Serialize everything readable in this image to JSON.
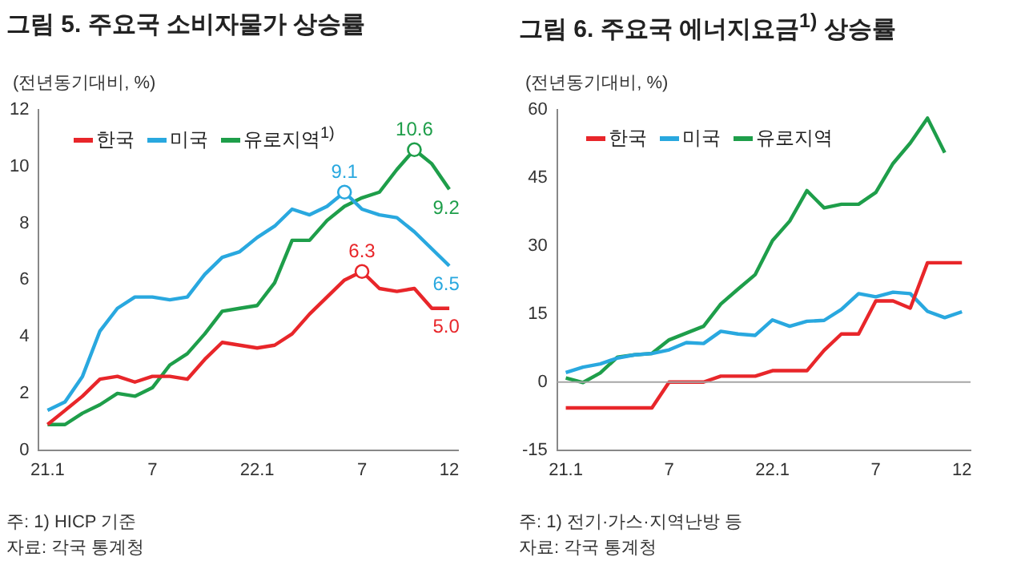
{
  "chart_data": [
    {
      "type": "line",
      "title": "그림 5. 주요국 소비자물가 상승률",
      "ylabel": "(전년동기대비, %)",
      "categories": [
        "21.1",
        null,
        null,
        null,
        null,
        null,
        "7",
        null,
        null,
        null,
        null,
        null,
        "22.1",
        null,
        null,
        null,
        null,
        null,
        "7",
        null,
        null,
        null,
        null,
        "12"
      ],
      "series": [
        {
          "name": "한국",
          "color": "#e8262a",
          "values": [
            0.9,
            1.4,
            1.9,
            2.5,
            2.6,
            2.4,
            2.6,
            2.6,
            2.5,
            3.2,
            3.8,
            3.7,
            3.6,
            3.7,
            4.1,
            4.8,
            5.4,
            6.0,
            6.3,
            5.7,
            5.6,
            5.7,
            5.0,
            5.0
          ],
          "value_labels": [
            null,
            null,
            null,
            null,
            null,
            null,
            null,
            null,
            null,
            null,
            null,
            null,
            null,
            null,
            null,
            null,
            null,
            null,
            "6.3",
            null,
            null,
            null,
            null,
            "5.0"
          ]
        },
        {
          "name": "미국",
          "color": "#29a8df",
          "values": [
            1.4,
            1.7,
            2.6,
            4.2,
            5.0,
            5.4,
            5.4,
            5.3,
            5.4,
            6.2,
            6.8,
            7.0,
            7.5,
            7.9,
            8.5,
            8.3,
            8.6,
            9.1,
            8.5,
            8.3,
            8.2,
            7.7,
            7.1,
            6.5
          ],
          "value_labels": [
            null,
            null,
            null,
            null,
            null,
            null,
            null,
            null,
            null,
            null,
            null,
            null,
            null,
            null,
            null,
            null,
            null,
            "9.1",
            null,
            null,
            null,
            null,
            null,
            "6.5"
          ]
        },
        {
          "name": "유로지역$^{1)}$",
          "color": "#1e9e4a",
          "values": [
            0.9,
            0.9,
            1.3,
            1.6,
            2.0,
            1.9,
            2.2,
            3.0,
            3.4,
            4.1,
            4.9,
            5.0,
            5.1,
            5.9,
            7.4,
            7.4,
            8.1,
            8.6,
            8.9,
            9.1,
            9.9,
            10.6,
            10.1,
            9.2
          ],
          "value_labels": [
            null,
            null,
            null,
            null,
            null,
            null,
            null,
            null,
            null,
            null,
            null,
            null,
            null,
            null,
            null,
            null,
            null,
            null,
            null,
            null,
            null,
            "10.6",
            null,
            "9.2"
          ]
        }
      ],
      "ylim": [
        0,
        12
      ],
      "yticks": [
        0,
        2,
        4,
        6,
        8,
        10,
        12
      ],
      "grid": false,
      "legend": "top left",
      "marker": "none",
      "annotations": [
        "주: 1) HICP 기준",
        "자료: 각국 통계청"
      ]
    },
    {
      "type": "line",
      "title": "그림 6. 주요국 에너지요금$^{1)}$ 상승률",
      "ylabel": "(전년동기대비, %)",
      "categories": [
        "21.1",
        null,
        null,
        null,
        null,
        null,
        "7",
        null,
        null,
        null,
        null,
        null,
        "22.1",
        null,
        null,
        null,
        null,
        null,
        "7",
        null,
        null,
        null,
        null,
        "12"
      ],
      "series": [
        {
          "name": "한국",
          "color": "#e8262a",
          "values": [
            -5.7,
            -5.7,
            -5.7,
            -5.7,
            -5.7,
            -5.7,
            0,
            0,
            0,
            1.3,
            1.3,
            1.3,
            2.5,
            2.5,
            2.5,
            7.0,
            10.6,
            10.6,
            17.9,
            17.9,
            16.3,
            26.3,
            26.3,
            26.3
          ]
        },
        {
          "name": "미국",
          "color": "#29a8df",
          "values": [
            2.1,
            3.3,
            4.0,
            5.3,
            6.0,
            6.3,
            7.1,
            8.7,
            8.5,
            11.2,
            10.6,
            10.3,
            13.7,
            12.3,
            13.4,
            13.6,
            16.0,
            19.5,
            18.8,
            19.8,
            19.5,
            15.6,
            14.2,
            15.5
          ]
        },
        {
          "name": "유로지역",
          "color": "#1e9e4a",
          "values": [
            0.9,
            -0.1,
            2.0,
            5.5,
            6.0,
            6.3,
            9.3,
            10.8,
            12.3,
            17.2,
            20.5,
            23.7,
            31.2,
            35.5,
            42.2,
            38.4,
            39.2,
            39.2,
            41.8,
            48.2,
            52.7,
            58.2,
            50.6,
            null
          ]
        }
      ],
      "ylim": [
        -15,
        60
      ],
      "yticks": [
        -15,
        0,
        15,
        30,
        45,
        60
      ],
      "grid": false,
      "legend": "top left",
      "marker": "none",
      "ref_lines": [
        {
          "axis": "y",
          "value": 0,
          "color": "#a6a6a6"
        }
      ],
      "annotations": [
        "주: 1) 전기·가스·지역난방 등",
        "자료: 각국 통계청"
      ]
    }
  ]
}
